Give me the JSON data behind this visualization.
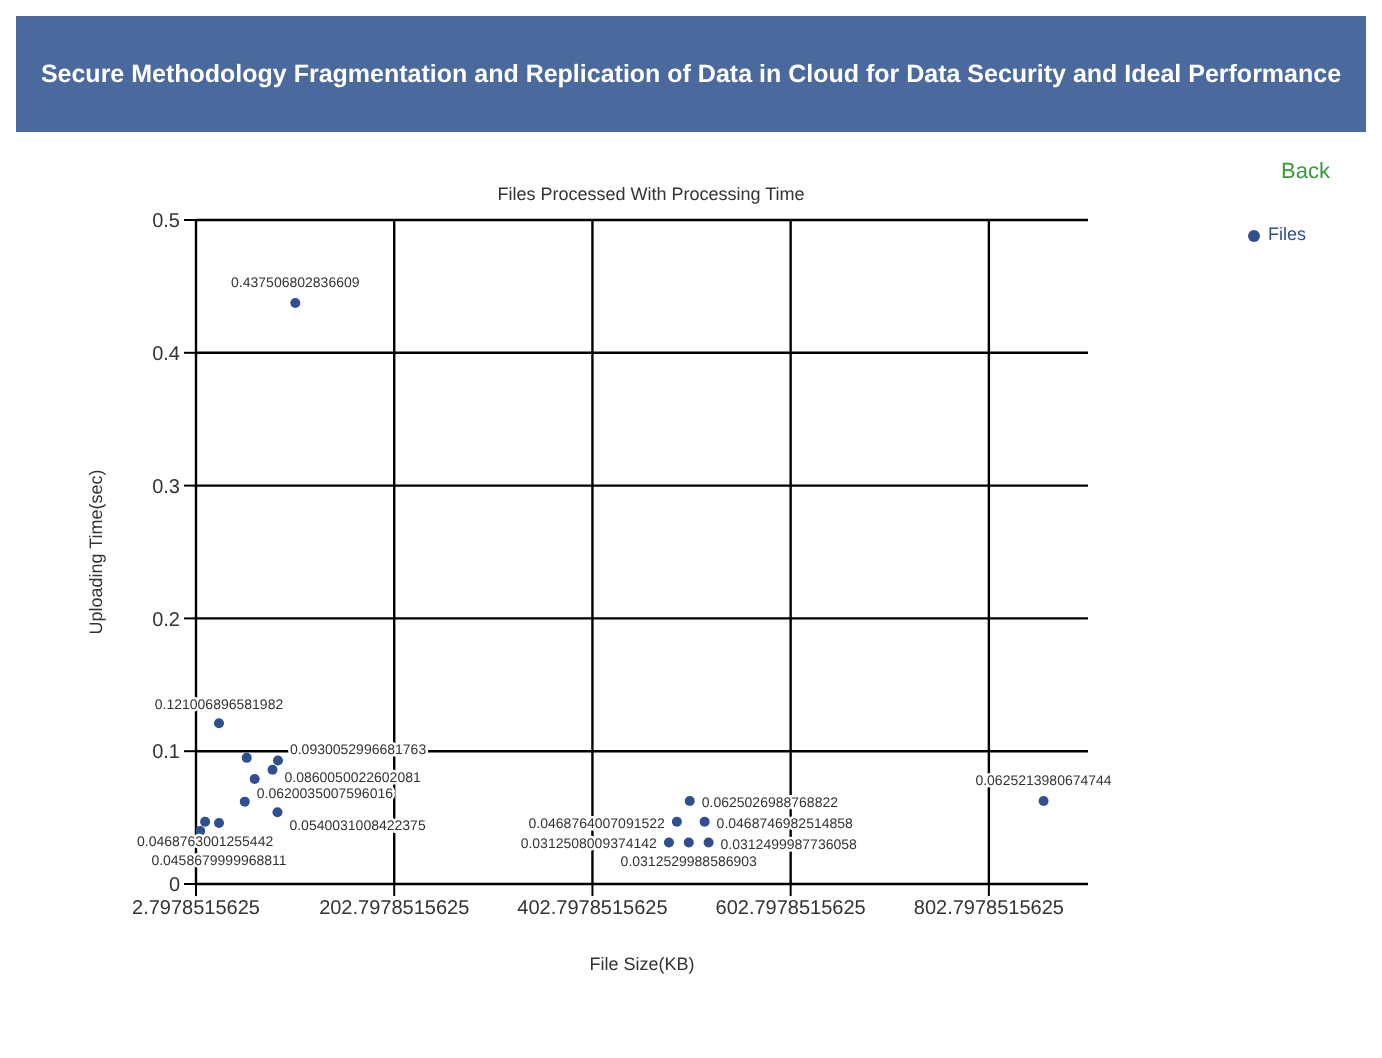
{
  "chart_data": {
    "type": "scatter",
    "title": "Secure Methodology Fragmentation and Replication of Data in Cloud for Data Security and Ideal Performance",
    "subtitle": "Files Processed With Processing Time",
    "xlabel": "File Size(KB)",
    "ylabel": "Uploading Time(sec)",
    "annotations": [
      "Back"
    ],
    "xlim": [
      2.7978515625,
      902.7978515625
    ],
    "xticks": [
      2.7978515625,
      202.7978515625,
      402.7978515625,
      602.7978515625,
      802.7978515625
    ],
    "ylim": [
      0,
      0.5
    ],
    "yticks": [
      0,
      0.1,
      0.2,
      0.3,
      0.4,
      0.5
    ],
    "grid": true,
    "legend": "top right",
    "marker": "circle",
    "series": [
      {
        "name": "Files",
        "color": "#2f4f8f",
        "x": [
          103,
          26,
          85.5,
          80,
          85,
          52,
          12,
          26,
          54,
          62,
          7,
          501,
          488,
          480,
          516,
          500,
          520,
          858
        ],
        "values": [
          0.437506802836609,
          0.121006896581982,
          0.0930052996681763,
          0.0860050022602081,
          0.0540031008422375,
          0.0620035007596016,
          0.0468763001255442,
          0.0458679999968811,
          0.095,
          0.079,
          0.04,
          0.0625026988768822,
          0.0468764007091522,
          0.0312508009374142,
          0.0468746982514858,
          0.0312529988586903,
          0.0312499987736058,
          0.0625213980674744
        ],
        "value_labels": [
          "0.437506802836609",
          "0.121006896581982",
          "0.0930052996681763",
          "0.0860050022602081",
          "0.0540031008422375",
          "0.0620035007596016",
          "0.0468763001255442",
          "0.0458679999968811",
          null,
          null,
          null,
          "0.0625026988768822",
          "0.0468764007091522",
          "0.0312508009374142",
          "0.0468746982514858",
          "0.0312529988586903",
          "0.0312499987736058",
          "0.0625213980674744"
        ]
      }
    ]
  }
}
